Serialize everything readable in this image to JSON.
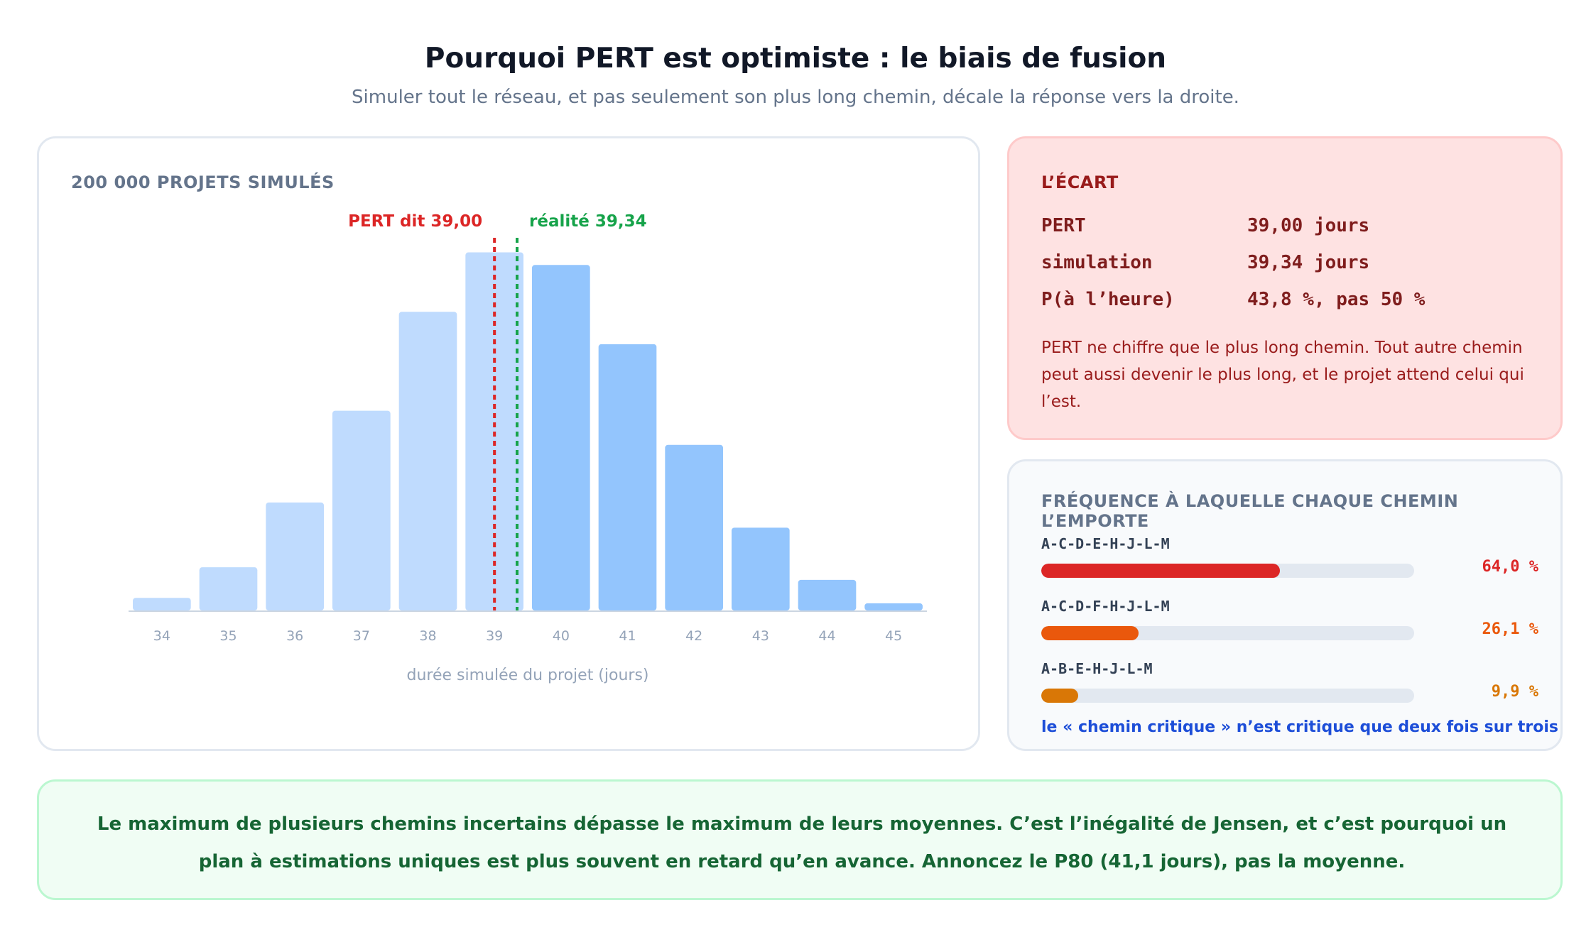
{
  "header": {
    "title": "Pourquoi PERT est optimiste : le biais de fusion",
    "subtitle": "Simuler tout le réseau, et pas seulement son plus long chemin, décale la réponse vers la droite."
  },
  "chart_card": {
    "label": "200 000 PROJETS SIMULÉS"
  },
  "chart_data": {
    "type": "bar",
    "title": "",
    "xlabel": "durée simulée du projet (jours)",
    "ylabel": "",
    "categories": [
      "34",
      "35",
      "36",
      "37",
      "38",
      "39",
      "40",
      "41",
      "42",
      "43",
      "44",
      "45"
    ],
    "values": [
      0.035,
      0.12,
      0.3,
      0.555,
      0.83,
      0.995,
      0.96,
      0.74,
      0.46,
      0.23,
      0.085,
      0.02
    ],
    "value_units": "fraction of tallest bar",
    "x_domain": [
      33.5,
      45.5
    ],
    "ylim": [
      0,
      1
    ],
    "grid": false,
    "colors": {
      "left_of_reality": "#bfdbfe",
      "right_of_reality": "#93c5fd"
    },
    "reference_lines": [
      {
        "label": "PERT dit 39,00",
        "x": 39.0,
        "color": "#dc2626"
      },
      {
        "label": "réalité 39,34",
        "x": 39.34,
        "color": "#16a34a"
      }
    ]
  },
  "gap_card": {
    "label": "L’ÉCART",
    "stats": [
      {
        "key": "PERT",
        "value": "39,00 jours"
      },
      {
        "key": "simulation",
        "value": "39,34 jours"
      },
      {
        "key": "P(à l’heure)",
        "value": "43,8 %, pas 50 %"
      }
    ],
    "note": "PERT ne chiffre que le plus long chemin. Tout autre chemin peut aussi devenir le plus long, et le projet attend celui qui l’est."
  },
  "freq_card": {
    "label": "FRÉQUENCE À LAQUELLE CHAQUE CHEMIN L’EMPORTE",
    "paths": [
      {
        "name": "A-C-D-E-H-J-L-M",
        "pct_label": "64,0 %",
        "fraction": 0.64,
        "color": "#dc2626"
      },
      {
        "name": "A-C-D-F-H-J-L-M",
        "pct_label": "26,1 %",
        "fraction": 0.261,
        "color": "#ea580c"
      },
      {
        "name": "A-B-E-H-J-L-M",
        "pct_label": "9,9 %",
        "fraction": 0.099,
        "color": "#d97706"
      }
    ],
    "note": "le « chemin critique » n’est critique que deux fois sur trois"
  },
  "conclusion": {
    "text": "Le maximum de plusieurs chemins incertains dépasse le maximum de leurs moyennes. C’est l’inégalité de Jensen, et c’est pourquoi un plan à estimations uniques est plus souvent en retard qu’en avance. Annoncez le P80 (41,1 jours), pas la moyenne."
  }
}
